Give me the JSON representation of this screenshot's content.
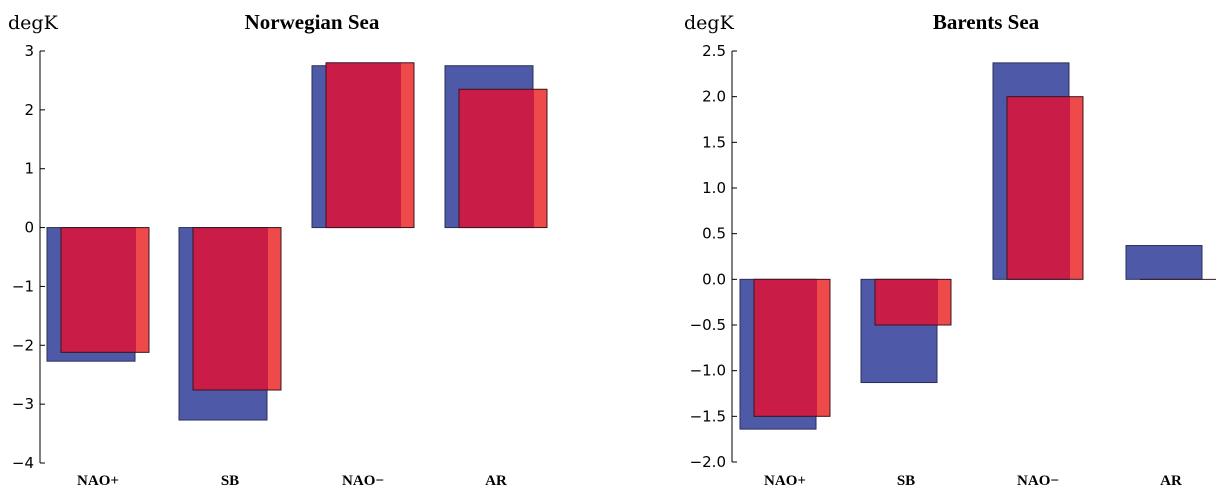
{
  "chart_data": [
    {
      "type": "bar",
      "title": "Norwegian Sea",
      "ylabel": "degK",
      "categories": [
        "NAO+",
        "SB",
        "NAO−",
        "AR"
      ],
      "ylim": [
        -4,
        3
      ],
      "yticks": [
        3,
        2,
        1,
        0,
        -1,
        -2,
        -3,
        -4
      ],
      "ytick_labels": [
        "3",
        "2",
        "1",
        "0",
        "−1",
        "−2",
        "−3",
        "−4"
      ],
      "grid": false,
      "series": [
        {
          "color": "#4e5aa8",
          "values": [
            -2.27,
            -3.27,
            2.75,
            2.75
          ]
        },
        {
          "color": "#c91c47",
          "edge_color": "#ee4a4a",
          "values": [
            -2.12,
            -2.76,
            2.8,
            2.35
          ]
        }
      ]
    },
    {
      "type": "bar",
      "title": "Barents Sea",
      "ylabel": "degK",
      "categories": [
        "NAO+",
        "SB",
        "NAO−",
        "AR"
      ],
      "ylim": [
        -2,
        2.5
      ],
      "yticks": [
        2.5,
        2.0,
        1.5,
        1.0,
        0.5,
        0.0,
        -0.5,
        -1.0,
        -1.5,
        -2.0
      ],
      "ytick_labels": [
        "2.5",
        "2.0",
        "1.5",
        "1.0",
        "0.5",
        "0.0",
        "−0.5",
        "−1.0",
        "−1.5",
        "−2.0"
      ],
      "grid": false,
      "series": [
        {
          "color": "#4e5aa8",
          "values": [
            -1.64,
            -1.13,
            2.37,
            0.37
          ]
        },
        {
          "color": "#c91c47",
          "edge_color": "#ee4a4a",
          "values": [
            -1.5,
            -0.5,
            2.0,
            0.0
          ]
        }
      ]
    }
  ]
}
